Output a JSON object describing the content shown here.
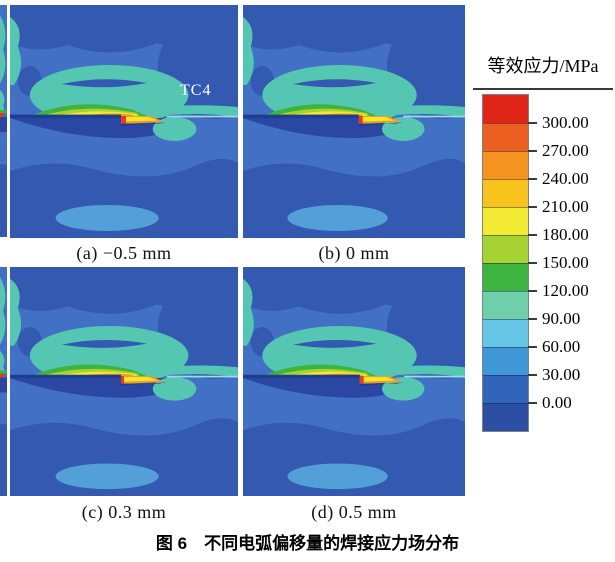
{
  "figure": {
    "caption": "图 6　不同电弧偏移量的焊接应力场分布",
    "panels": [
      {
        "id": "a",
        "label": "(a) −0.5 mm",
        "annotation": "TC4"
      },
      {
        "id": "b",
        "label": "(b) 0 mm",
        "annotation": ""
      },
      {
        "id": "c",
        "label": "(c) 0.3 mm",
        "annotation": ""
      },
      {
        "id": "d",
        "label": "(d) 0.5 mm",
        "annotation": ""
      }
    ]
  },
  "legend": {
    "title": "等效应力/MPa",
    "tick_labels": [
      "300.00",
      "270.00",
      "240.00",
      "210.00",
      "180.00",
      "150.00",
      "120.00",
      "90.00",
      "60.00",
      "30.00",
      "0.00"
    ],
    "segment_colors_top_to_bottom": [
      "#e02518",
      "#eb6020",
      "#f49320",
      "#f8c31c",
      "#f3ea33",
      "#a7d233",
      "#3fb33f",
      "#6fcfa8",
      "#66c6e6",
      "#3f97d5",
      "#3164bb",
      "#2c4fa4"
    ]
  },
  "chart_data": {
    "type": "heatmap",
    "title": "图 6　不同电弧偏移量的焊接应力场分布",
    "subtype": "FE welding equivalent-stress contour plots, 2x2 grid",
    "panels": [
      {
        "label": "(a) −0.5 mm",
        "arc_offset_mm": -0.5
      },
      {
        "label": "(b) 0 mm",
        "arc_offset_mm": 0
      },
      {
        "label": "(c) 0.3 mm",
        "arc_offset_mm": 0.3
      },
      {
        "label": "(d) 0.5 mm",
        "arc_offset_mm": 0.5
      }
    ],
    "colorbar": {
      "label": "等效应力/MPa",
      "levels_mpa": [
        300,
        270,
        240,
        210,
        180,
        150,
        120,
        90,
        60,
        30,
        0
      ],
      "range_mpa": [
        0,
        300
      ],
      "legend_position": "right"
    },
    "material_annotation": "TC4"
  },
  "palette": {
    "base_blue": "#4170c4",
    "dark_blue": "#3459b0",
    "navy_blue": "#2a48a3",
    "seam_navy": "#1e3c94",
    "teal": "#54c6b2",
    "pale_cyan": "#98dde2",
    "light_blue": "#539fd8",
    "green": "#3eb43d",
    "yellow_green": "#a6d233",
    "yellow": "#f2e930",
    "orange": "#f59d1b",
    "red": "#e63c1e",
    "annotation_text": "#ffffff"
  }
}
